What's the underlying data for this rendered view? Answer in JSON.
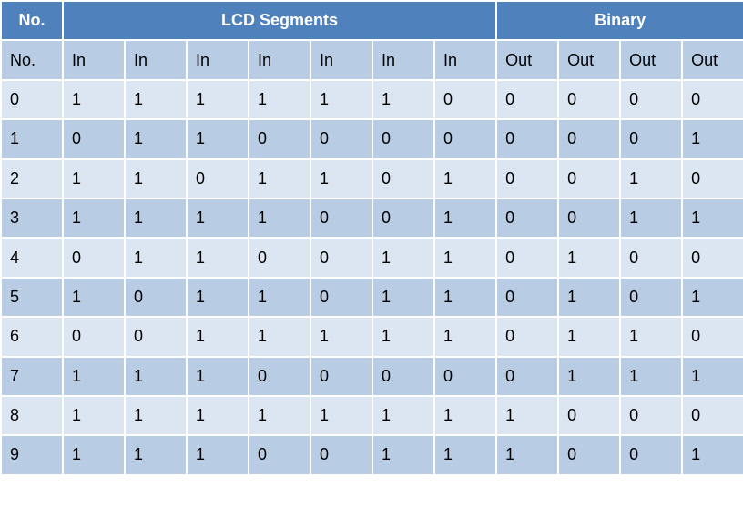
{
  "table": {
    "header": [
      "No.",
      "LCD Segments",
      "Binary"
    ],
    "subheader": [
      "No.",
      "In",
      "In",
      "In",
      "In",
      "In",
      "In",
      "In",
      "Out",
      "Out",
      "Out",
      "Out"
    ],
    "rows": [
      [
        0,
        1,
        1,
        1,
        1,
        1,
        1,
        0,
        0,
        0,
        0,
        0
      ],
      [
        1,
        0,
        1,
        1,
        0,
        0,
        0,
        0,
        0,
        0,
        0,
        1
      ],
      [
        2,
        1,
        1,
        0,
        1,
        1,
        0,
        1,
        0,
        0,
        1,
        0
      ],
      [
        3,
        1,
        1,
        1,
        1,
        0,
        0,
        1,
        0,
        0,
        1,
        1
      ],
      [
        4,
        0,
        1,
        1,
        0,
        0,
        1,
        1,
        0,
        1,
        0,
        0
      ],
      [
        5,
        1,
        0,
        1,
        1,
        0,
        1,
        1,
        0,
        1,
        0,
        1
      ],
      [
        6,
        0,
        0,
        1,
        1,
        1,
        1,
        1,
        0,
        1,
        1,
        0
      ],
      [
        7,
        1,
        1,
        1,
        0,
        0,
        0,
        0,
        0,
        1,
        1,
        1
      ],
      [
        8,
        1,
        1,
        1,
        1,
        1,
        1,
        1,
        1,
        0,
        0,
        0
      ],
      [
        9,
        1,
        1,
        1,
        0,
        0,
        1,
        1,
        1,
        0,
        0,
        1
      ]
    ]
  }
}
